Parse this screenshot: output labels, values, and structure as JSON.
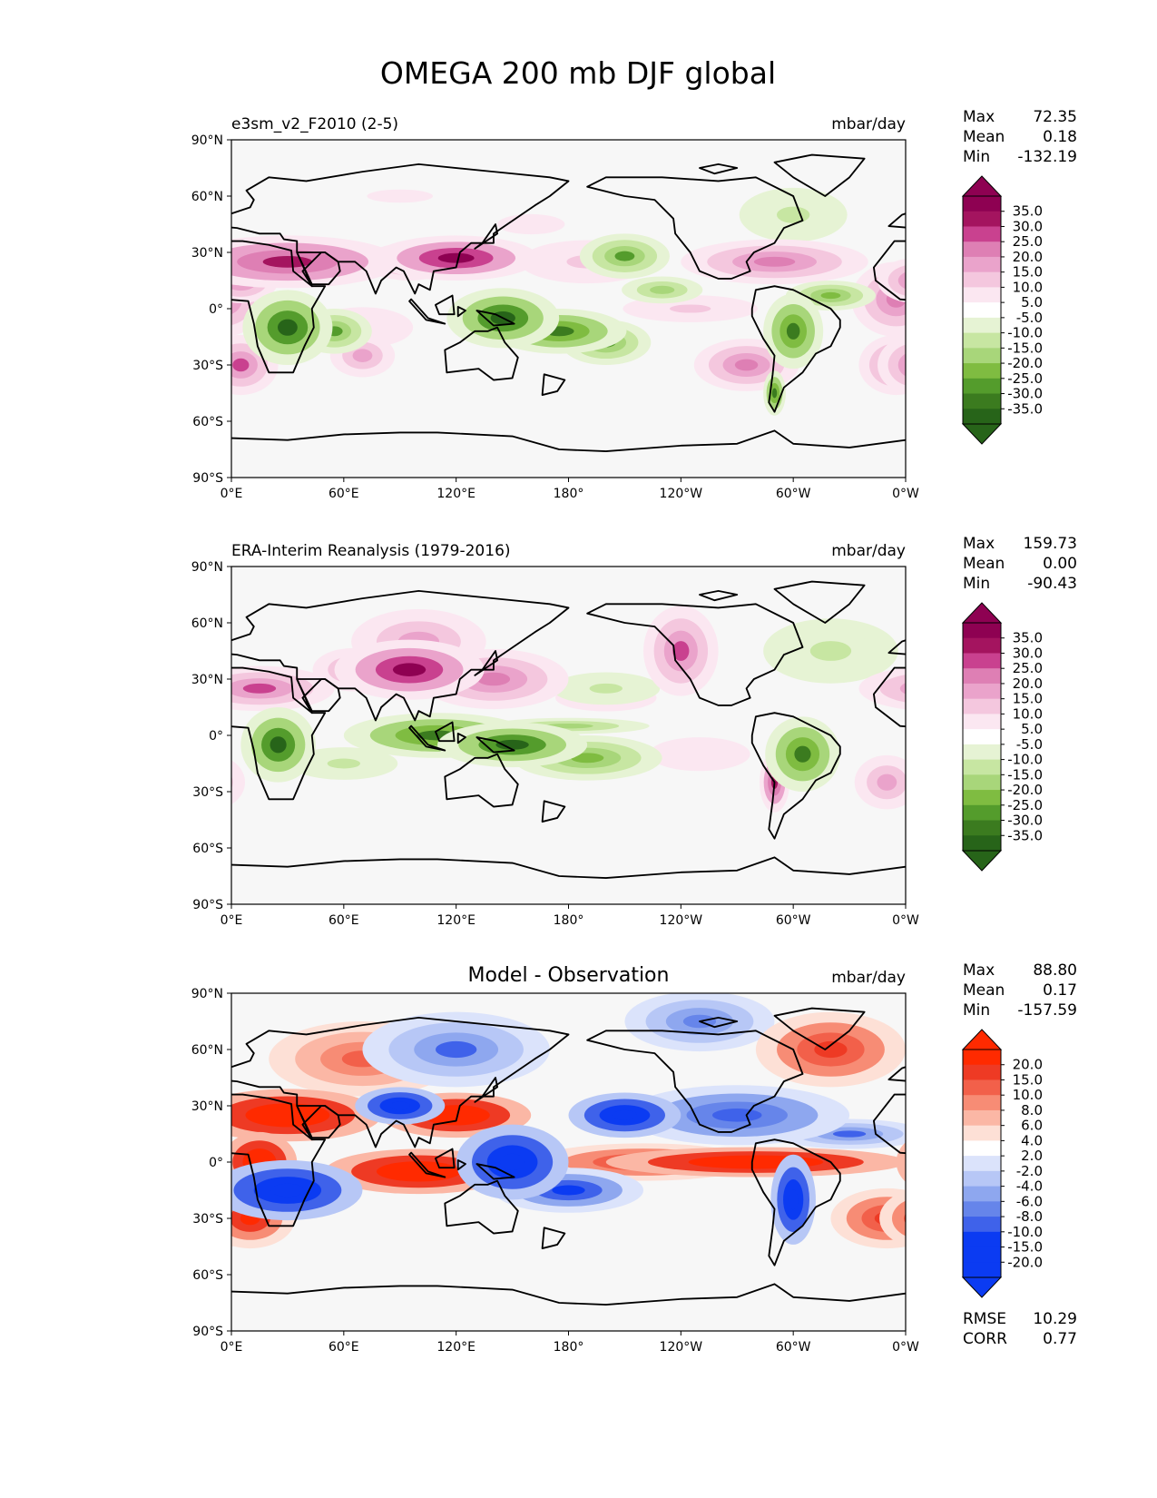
{
  "title": "OMEGA 200 mb DJF global",
  "lat_ticks": [
    "90°N",
    "60°N",
    "30°N",
    "0°",
    "30°S",
    "60°S",
    "90°S"
  ],
  "lon_ticks": [
    "0°E",
    "60°E",
    "120°E",
    "180°",
    "120°W",
    "60°W",
    "0°W"
  ],
  "colors": {
    "ocean": "#f7f7f7",
    "coast": "#000000",
    "pos_scale": [
      "#fbe7f1",
      "#f4c7de",
      "#eaa3cb",
      "#de7fb4",
      "#c9418f",
      "#a4145f",
      "#8e0152"
    ],
    "neg_scale": [
      "#e6f3d4",
      "#c7e6a2",
      "#a8d67a",
      "#7fbc41",
      "#549c2c",
      "#3b7b1f",
      "#276419"
    ],
    "diff_pos_scale": [
      "#fde0d6",
      "#fbb7a5",
      "#f78c75",
      "#f2604a",
      "#ee3a24",
      "#ff2a00"
    ],
    "diff_neg_scale": [
      "#dbe3fb",
      "#b7c7f6",
      "#8ea7ef",
      "#6685ea",
      "#3f62ea",
      "#0b3bf2"
    ]
  },
  "panels": [
    {
      "subtitle": "e3sm_v2_F2010 (2-5)",
      "units": "mbar/day",
      "stats": [
        {
          "label": "Max",
          "value": "72.35"
        },
        {
          "label": "Mean",
          "value": "0.18"
        },
        {
          "label": "Min",
          "value": "-132.19"
        }
      ],
      "colorbar_labels": [
        "35.0",
        "30.0",
        "25.0",
        "20.0",
        "15.0",
        "10.0",
        "5.0",
        "-5.0",
        "-10.0",
        "-15.0",
        "-20.0",
        "-25.0",
        "-30.0",
        "-35.0"
      ]
    },
    {
      "subtitle": "ERA-Interim Reanalysis (1979-2016)",
      "units": "mbar/day",
      "stats": [
        {
          "label": "Max",
          "value": "159.73"
        },
        {
          "label": "Mean",
          "value": "0.00"
        },
        {
          "label": "Min",
          "value": "-90.43"
        }
      ],
      "colorbar_labels": [
        "35.0",
        "30.0",
        "25.0",
        "20.0",
        "15.0",
        "10.0",
        "5.0",
        "-5.0",
        "-10.0",
        "-15.0",
        "-20.0",
        "-25.0",
        "-30.0",
        "-35.0"
      ]
    },
    {
      "subtitle": "Model - Observation",
      "units": "mbar/day",
      "stats": [
        {
          "label": "Max",
          "value": "88.80"
        },
        {
          "label": "Mean",
          "value": "0.17"
        },
        {
          "label": "Min",
          "value": "-157.59"
        }
      ],
      "colorbar_labels": [
        "20.0",
        "15.0",
        "10.0",
        "8.0",
        "6.0",
        "4.0",
        "2.0",
        "-2.0",
        "-4.0",
        "-6.0",
        "-8.0",
        "-10.0",
        "-15.0",
        "-20.0"
      ],
      "metrics": [
        {
          "label": "RMSE",
          "value": "10.29"
        },
        {
          "label": "CORR",
          "value": "0.77"
        }
      ]
    }
  ],
  "chart_data": [
    {
      "type": "heatmap",
      "title": "e3sm_v2_F2010 (2-5)",
      "units": "mbar/day",
      "xlim": [
        0,
        360
      ],
      "ylim": [
        -90,
        90
      ],
      "contour_levels": [
        -35,
        -30,
        -25,
        -20,
        -15,
        -10,
        -5,
        5,
        10,
        15,
        20,
        25,
        30,
        35
      ],
      "stats": {
        "max": 72.35,
        "mean": 0.18,
        "min": -132.19
      },
      "features": [
        {
          "lon": 30,
          "lat": 25,
          "value": 30,
          "sx": 30,
          "sy": 7
        },
        {
          "lon": 120,
          "lat": 27,
          "value": 35,
          "sx": 22,
          "sy": 6
        },
        {
          "lon": 95,
          "lat": 25,
          "value": 25,
          "sx": 12,
          "sy": 5
        },
        {
          "lon": 5,
          "lat": 15,
          "value": 25,
          "sx": 10,
          "sy": 6
        },
        {
          "lon": 190,
          "lat": 25,
          "value": 12,
          "sx": 25,
          "sy": 8
        },
        {
          "lon": 290,
          "lat": 25,
          "value": 20,
          "sx": 25,
          "sy": 6
        },
        {
          "lon": 355,
          "lat": 5,
          "value": 20,
          "sx": 12,
          "sy": 10
        },
        {
          "lon": 70,
          "lat": -10,
          "value": 8,
          "sx": 30,
          "sy": 12
        },
        {
          "lon": 70,
          "lat": -25,
          "value": 18,
          "sx": 12,
          "sy": 8
        },
        {
          "lon": 5,
          "lat": -30,
          "value": 25,
          "sx": 10,
          "sy": 8
        },
        {
          "lon": 275,
          "lat": -30,
          "value": 20,
          "sx": 14,
          "sy": 7
        },
        {
          "lon": 355,
          "lat": -30,
          "value": 20,
          "sx": 10,
          "sy": 8
        },
        {
          "lon": 245,
          "lat": 0,
          "value": 12,
          "sx": 25,
          "sy": 5
        },
        {
          "lon": 90,
          "lat": 60,
          "value": 6,
          "sx": 40,
          "sy": 8
        },
        {
          "lon": 160,
          "lat": 45,
          "value": 8,
          "sx": 20,
          "sy": 6
        },
        {
          "lon": 30,
          "lat": -10,
          "value": -35,
          "sx": 12,
          "sy": 10
        },
        {
          "lon": 55,
          "lat": -12,
          "value": -25,
          "sx": 10,
          "sy": 6
        },
        {
          "lon": 145,
          "lat": -5,
          "value": -35,
          "sx": 15,
          "sy": 8
        },
        {
          "lon": 175,
          "lat": -12,
          "value": -30,
          "sx": 18,
          "sy": 6
        },
        {
          "lon": 200,
          "lat": -18,
          "value": -25,
          "sx": 12,
          "sy": 6
        },
        {
          "lon": 300,
          "lat": -12,
          "value": -30,
          "sx": 8,
          "sy": 10
        },
        {
          "lon": 210,
          "lat": 28,
          "value": -25,
          "sx": 12,
          "sy": 6
        },
        {
          "lon": 300,
          "lat": 50,
          "value": -12,
          "sx": 20,
          "sy": 10
        },
        {
          "lon": 230,
          "lat": 10,
          "value": -15,
          "sx": 15,
          "sy": 5
        },
        {
          "lon": 320,
          "lat": 7,
          "value": -20,
          "sx": 12,
          "sy": 4
        },
        {
          "lon": 290,
          "lat": -45,
          "value": -30,
          "sx": 3,
          "sy": 6
        }
      ]
    },
    {
      "type": "heatmap",
      "title": "ERA-Interim Reanalysis (1979-2016)",
      "units": "mbar/day",
      "xlim": [
        0,
        360
      ],
      "ylim": [
        -90,
        90
      ],
      "contour_levels": [
        -35,
        -30,
        -25,
        -20,
        -15,
        -10,
        -5,
        5,
        10,
        15,
        20,
        25,
        30,
        35
      ],
      "stats": {
        "max": 159.73,
        "mean": 0.0,
        "min": -90.43
      },
      "features": [
        {
          "lon": 95,
          "lat": 35,
          "value": 35,
          "sx": 20,
          "sy": 8
        },
        {
          "lon": 100,
          "lat": 50,
          "value": 18,
          "sx": 25,
          "sy": 12
        },
        {
          "lon": 140,
          "lat": 30,
          "value": 20,
          "sx": 20,
          "sy": 8
        },
        {
          "lon": 15,
          "lat": 25,
          "value": 25,
          "sx": 20,
          "sy": 6
        },
        {
          "lon": 65,
          "lat": 35,
          "value": 15,
          "sx": 15,
          "sy": 8
        },
        {
          "lon": 240,
          "lat": 45,
          "value": 25,
          "sx": 10,
          "sy": 12
        },
        {
          "lon": 290,
          "lat": -25,
          "value": 30,
          "sx": 4,
          "sy": 8
        },
        {
          "lon": 350,
          "lat": -25,
          "value": 15,
          "sx": 12,
          "sy": 10
        },
        {
          "lon": 250,
          "lat": -10,
          "value": 8,
          "sx": 30,
          "sy": 10
        },
        {
          "lon": 200,
          "lat": 20,
          "value": 8,
          "sx": 30,
          "sy": 8
        },
        {
          "lon": 25,
          "lat": -5,
          "value": -35,
          "sx": 10,
          "sy": 10
        },
        {
          "lon": 110,
          "lat": 0,
          "value": -30,
          "sx": 25,
          "sy": 6
        },
        {
          "lon": 150,
          "lat": -5,
          "value": -35,
          "sx": 20,
          "sy": 6
        },
        {
          "lon": 190,
          "lat": -12,
          "value": -20,
          "sx": 20,
          "sy": 6
        },
        {
          "lon": 180,
          "lat": 5,
          "value": -15,
          "sx": 30,
          "sy": 3
        },
        {
          "lon": 305,
          "lat": -10,
          "value": -30,
          "sx": 10,
          "sy": 10
        },
        {
          "lon": 200,
          "lat": 25,
          "value": -12,
          "sx": 20,
          "sy": 6
        },
        {
          "lon": 320,
          "lat": 45,
          "value": -10,
          "sx": 25,
          "sy": 12
        },
        {
          "lon": 60,
          "lat": -15,
          "value": -12,
          "sx": 20,
          "sy": 6
        }
      ]
    },
    {
      "type": "heatmap",
      "title": "Model - Observation",
      "units": "mbar/day",
      "xlim": [
        0,
        360
      ],
      "ylim": [
        -90,
        90
      ],
      "contour_levels": [
        -20,
        -15,
        -10,
        -8,
        -6,
        -4,
        -2,
        2,
        4,
        6,
        8,
        10,
        15,
        20
      ],
      "stats": {
        "max": 88.8,
        "mean": 0.17,
        "min": -157.59
      },
      "metrics": {
        "rmse": 10.29,
        "corr": 0.77
      },
      "features": [
        {
          "lon": 30,
          "lat": 25,
          "value": 20,
          "sx": 25,
          "sy": 7
        },
        {
          "lon": 120,
          "lat": 25,
          "value": 20,
          "sx": 20,
          "sy": 6
        },
        {
          "lon": 100,
          "lat": -5,
          "value": 20,
          "sx": 25,
          "sy": 6
        },
        {
          "lon": 15,
          "lat": 0,
          "value": 20,
          "sx": 10,
          "sy": 8
        },
        {
          "lon": 280,
          "lat": 0,
          "value": 20,
          "sx": 40,
          "sy": 4
        },
        {
          "lon": 350,
          "lat": -30,
          "value": 12,
          "sx": 15,
          "sy": 8
        },
        {
          "lon": 10,
          "lat": -30,
          "value": 15,
          "sx": 12,
          "sy": 8
        },
        {
          "lon": 320,
          "lat": 60,
          "value": 12,
          "sx": 20,
          "sy": 10
        },
        {
          "lon": 70,
          "lat": 55,
          "value": 8,
          "sx": 25,
          "sy": 10
        },
        {
          "lon": 220,
          "lat": 0,
          "value": 12,
          "sx": 30,
          "sy": 5
        },
        {
          "lon": 90,
          "lat": 30,
          "value": -20,
          "sx": 12,
          "sy": 5
        },
        {
          "lon": 30,
          "lat": -15,
          "value": -20,
          "sx": 20,
          "sy": 8
        },
        {
          "lon": 150,
          "lat": 0,
          "value": -20,
          "sx": 15,
          "sy": 10
        },
        {
          "lon": 180,
          "lat": -15,
          "value": -15,
          "sx": 20,
          "sy": 6
        },
        {
          "lon": 210,
          "lat": 25,
          "value": -20,
          "sx": 15,
          "sy": 6
        },
        {
          "lon": 270,
          "lat": 25,
          "value": -12,
          "sx": 30,
          "sy": 8
        },
        {
          "lon": 300,
          "lat": -20,
          "value": -20,
          "sx": 6,
          "sy": 12
        },
        {
          "lon": 330,
          "lat": 15,
          "value": -10,
          "sx": 20,
          "sy": 4
        },
        {
          "lon": 120,
          "lat": 60,
          "value": -10,
          "sx": 25,
          "sy": 10
        },
        {
          "lon": 250,
          "lat": 75,
          "value": -8,
          "sx": 20,
          "sy": 8
        }
      ]
    }
  ]
}
